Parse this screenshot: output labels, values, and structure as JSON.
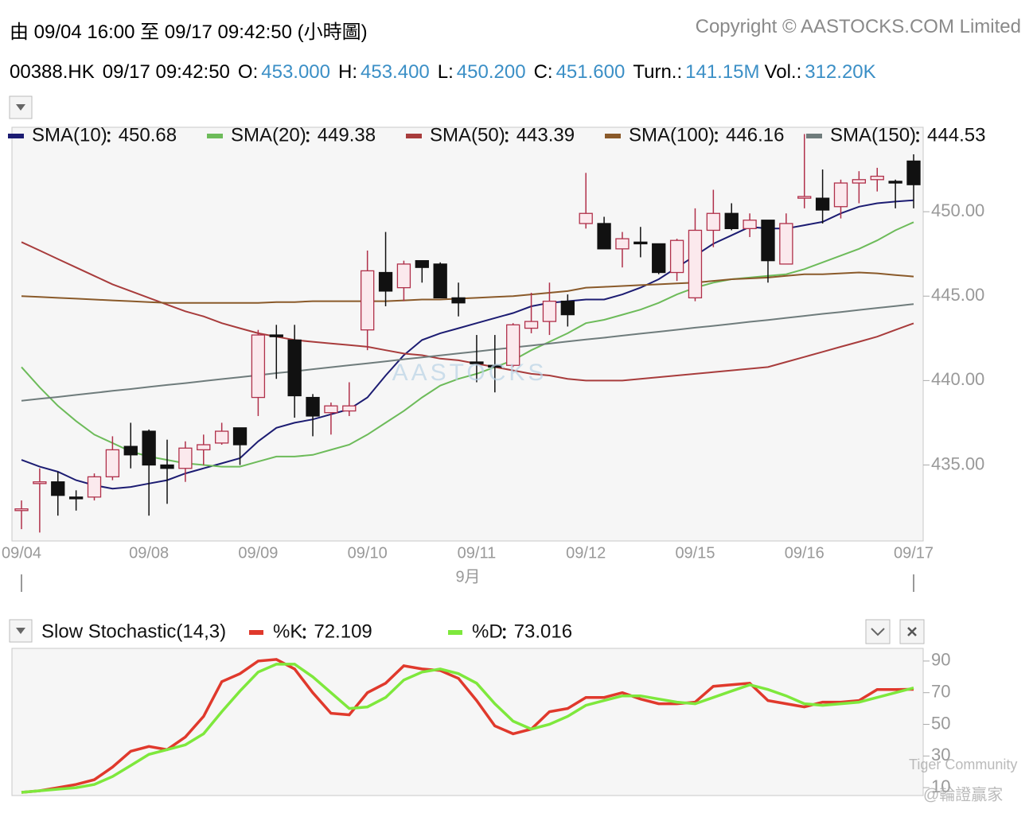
{
  "header": {
    "range": "由  09/04 16:00 至  09/17 09:42:50 (小時圖)",
    "copyright": "Copyright © AASTOCKS.COM Limited",
    "quote": {
      "symbol": "00388.HK",
      "time": "09/17 09:42:50",
      "fields": [
        {
          "label": "O:",
          "value": "453.000"
        },
        {
          "label": "H:",
          "value": "453.400"
        },
        {
          "label": "L:",
          "value": "450.200"
        },
        {
          "label": "C:",
          "value": "451.600"
        },
        {
          "label": "Turn.:",
          "value": "141.15M"
        },
        {
          "label": "Vol.:",
          "value": "312.20K"
        }
      ]
    }
  },
  "watermarks": [
    "AASTOCKS",
    "Tiger Community",
    "@輪證贏家"
  ],
  "chart_data": [
    {
      "type": "candlestick",
      "month_label": "9月",
      "categories": [
        "09/04",
        null,
        null,
        null,
        null,
        null,
        null,
        "09/08",
        null,
        null,
        null,
        null,
        null,
        "09/09",
        null,
        null,
        null,
        null,
        null,
        "09/10",
        null,
        null,
        null,
        null,
        null,
        "09/11",
        null,
        null,
        null,
        null,
        null,
        "09/12",
        null,
        null,
        null,
        null,
        null,
        "09/15",
        null,
        null,
        null,
        null,
        null,
        "09/16",
        null,
        null,
        null,
        null,
        null,
        "09/17"
      ],
      "open": [
        432.3,
        433.9,
        434.0,
        433.1,
        433.1,
        434.3,
        436.1,
        437.0,
        435.0,
        434.8,
        435.9,
        436.3,
        437.2,
        439.0,
        442.7,
        442.4,
        439.0,
        438.1,
        438.2,
        443.0,
        446.4,
        445.5,
        447.1,
        446.9,
        444.9,
        441.1,
        440.9,
        440.9,
        443.1,
        443.5,
        444.7,
        449.3,
        449.3,
        447.8,
        448.2,
        448.1,
        446.4,
        444.9,
        448.9,
        449.9,
        449.0,
        449.5,
        446.9,
        450.8,
        450.8,
        450.3,
        451.7,
        451.9,
        451.8,
        453.0
      ],
      "high": [
        432.9,
        434.8,
        434.6,
        433.5,
        434.5,
        436.7,
        437.5,
        437.1,
        436.5,
        436.4,
        436.8,
        437.5,
        437.2,
        443.0,
        443.3,
        443.3,
        439.2,
        438.7,
        439.9,
        447.7,
        448.8,
        447.1,
        447.1,
        447.0,
        445.8,
        442.7,
        442.7,
        443.4,
        445.2,
        445.8,
        445.1,
        452.3,
        449.7,
        448.8,
        449.1,
        448.1,
        448.4,
        450.2,
        451.3,
        450.5,
        449.9,
        449.5,
        449.9,
        454.6,
        452.5,
        451.9,
        452.4,
        452.6,
        451.9,
        453.4
      ],
      "low": [
        431.2,
        431.0,
        432.0,
        432.3,
        432.9,
        434.1,
        434.8,
        432.0,
        432.7,
        434.0,
        435.0,
        436.2,
        435.0,
        437.9,
        440.1,
        437.8,
        436.7,
        436.8,
        437.9,
        441.8,
        444.4,
        444.7,
        445.8,
        444.9,
        443.8,
        439.9,
        439.3,
        440.8,
        442.8,
        442.7,
        443.2,
        449.0,
        447.8,
        446.7,
        447.3,
        446.3,
        445.9,
        444.7,
        447.9,
        448.9,
        448.5,
        445.8,
        446.9,
        450.2,
        449.3,
        449.6,
        450.5,
        451.2,
        450.2,
        450.2
      ],
      "close": [
        432.4,
        434.0,
        433.2,
        433.0,
        434.3,
        435.9,
        435.6,
        435.0,
        434.8,
        436.0,
        436.2,
        437.0,
        436.2,
        442.7,
        442.6,
        439.1,
        437.9,
        438.5,
        438.5,
        446.5,
        445.3,
        446.9,
        446.7,
        444.9,
        444.6,
        441.0,
        440.8,
        443.3,
        443.5,
        444.7,
        443.9,
        449.9,
        447.8,
        448.4,
        448.1,
        446.4,
        448.3,
        448.9,
        449.9,
        449.0,
        449.5,
        447.1,
        449.3,
        450.9,
        450.1,
        451.7,
        451.9,
        452.1,
        451.7,
        451.6
      ],
      "up_color": "#b0304a",
      "down_color": "#111111",
      "series": [
        {
          "name": "SMA(10)",
          "color": "#1c1c72",
          "values": [
            435.3,
            434.9,
            434.6,
            434.1,
            433.8,
            433.6,
            433.7,
            433.9,
            434.1,
            434.5,
            434.8,
            435.1,
            435.4,
            436.4,
            437.2,
            437.5,
            437.7,
            438.0,
            438.3,
            439.0,
            440.3,
            441.5,
            442.4,
            442.8,
            443.1,
            443.4,
            443.7,
            444.0,
            444.4,
            444.6,
            444.7,
            444.8,
            444.8,
            445.1,
            445.5,
            446.0,
            446.7,
            447.4,
            448.1,
            448.6,
            449.1,
            449.0,
            449.0,
            449.2,
            449.4,
            449.9,
            450.3,
            450.5,
            450.6,
            450.68
          ]
        },
        {
          "name": "SMA(20)",
          "color": "#6dbb5a",
          "values": [
            440.8,
            439.6,
            438.5,
            437.6,
            436.8,
            436.3,
            435.8,
            435.5,
            435.3,
            435.1,
            435.0,
            434.9,
            434.9,
            435.2,
            435.5,
            435.5,
            435.6,
            435.9,
            436.2,
            436.8,
            437.5,
            438.2,
            439.0,
            439.7,
            440.1,
            440.4,
            440.8,
            441.2,
            441.8,
            442.3,
            442.8,
            443.4,
            443.6,
            443.9,
            444.2,
            444.6,
            445.1,
            445.5,
            445.8,
            446.0,
            446.1,
            446.2,
            446.3,
            446.6,
            447.0,
            447.4,
            447.8,
            448.3,
            448.9,
            449.38
          ]
        },
        {
          "name": "SMA(50)",
          "color": "#a83c3c",
          "values": [
            448.2,
            447.7,
            447.2,
            446.7,
            446.2,
            445.7,
            445.3,
            444.9,
            444.5,
            444.1,
            443.8,
            443.4,
            443.1,
            442.8,
            442.6,
            442.4,
            442.3,
            442.2,
            442.1,
            442.0,
            441.8,
            441.6,
            441.5,
            441.3,
            441.2,
            441.0,
            440.8,
            440.6,
            440.4,
            440.3,
            440.1,
            440.0,
            440.0,
            440.0,
            440.1,
            440.2,
            440.3,
            440.4,
            440.5,
            440.6,
            440.7,
            440.8,
            441.1,
            441.4,
            441.7,
            442.0,
            442.3,
            442.6,
            443.0,
            443.39
          ]
        },
        {
          "name": "SMA(100)",
          "color": "#8a5a2a",
          "values": [
            445.0,
            444.95,
            444.9,
            444.85,
            444.8,
            444.75,
            444.7,
            444.65,
            444.6,
            444.6,
            444.6,
            444.6,
            444.6,
            444.6,
            444.65,
            444.65,
            444.7,
            444.7,
            444.7,
            444.7,
            444.7,
            444.75,
            444.8,
            444.8,
            444.85,
            444.9,
            444.95,
            445.0,
            445.1,
            445.2,
            445.3,
            445.5,
            445.55,
            445.6,
            445.65,
            445.7,
            445.75,
            445.8,
            445.9,
            446.0,
            446.05,
            446.1,
            446.2,
            446.3,
            446.3,
            446.35,
            446.4,
            446.35,
            446.25,
            446.16
          ]
        },
        {
          "name": "SMA(150)",
          "color": "#6f7c7c",
          "values": [
            438.8,
            438.92,
            439.03,
            439.15,
            439.27,
            439.39,
            439.5,
            439.62,
            439.74,
            439.85,
            439.97,
            440.09,
            440.2,
            440.32,
            440.44,
            440.55,
            440.67,
            440.79,
            440.91,
            441.02,
            441.14,
            441.26,
            441.37,
            441.49,
            441.61,
            441.72,
            441.84,
            441.96,
            442.07,
            442.19,
            442.31,
            442.43,
            442.54,
            442.66,
            442.78,
            442.89,
            443.01,
            443.13,
            443.24,
            443.36,
            443.48,
            443.59,
            443.71,
            443.83,
            443.95,
            444.06,
            444.18,
            444.3,
            444.41,
            444.53
          ]
        }
      ],
      "ylim": [
        430.5,
        455
      ],
      "yticks": [
        {
          "value": 435,
          "label": "435.00"
        },
        {
          "value": 440,
          "label": "440.00"
        },
        {
          "value": 445,
          "label": "445.00"
        },
        {
          "value": 450,
          "label": "450.00"
        }
      ],
      "grid": false
    },
    {
      "type": "line",
      "title": "Slow Stochastic(14,3)",
      "series": [
        {
          "name": "%K",
          "color": "#e0392c",
          "values": [
            7,
            8,
            10,
            12,
            15,
            23,
            33,
            36,
            34,
            42,
            55,
            77,
            82,
            90,
            91,
            85,
            70,
            57,
            56,
            70,
            76,
            87,
            85,
            84,
            79,
            65,
            49,
            44,
            47,
            58,
            60,
            67,
            67,
            70,
            66,
            63,
            63,
            64,
            74,
            75,
            76,
            65,
            63,
            61,
            64,
            64,
            65,
            72,
            72,
            72.109
          ]
        },
        {
          "name": "%D",
          "color": "#7ee83c",
          "values": [
            7,
            8,
            9,
            10,
            12,
            17,
            24,
            31,
            34,
            37,
            44,
            58,
            71,
            83,
            88,
            88,
            80,
            70,
            60,
            61,
            67,
            78,
            83,
            85,
            82,
            76,
            63,
            52,
            47,
            50,
            55,
            62,
            65,
            68,
            68,
            66,
            64,
            63,
            67,
            71,
            75,
            72,
            68,
            63,
            62,
            63,
            64,
            67,
            70,
            73.016
          ]
        }
      ],
      "ylim": [
        5,
        98
      ],
      "yticks": [
        10,
        30,
        50,
        70,
        90
      ],
      "grid": false
    }
  ]
}
